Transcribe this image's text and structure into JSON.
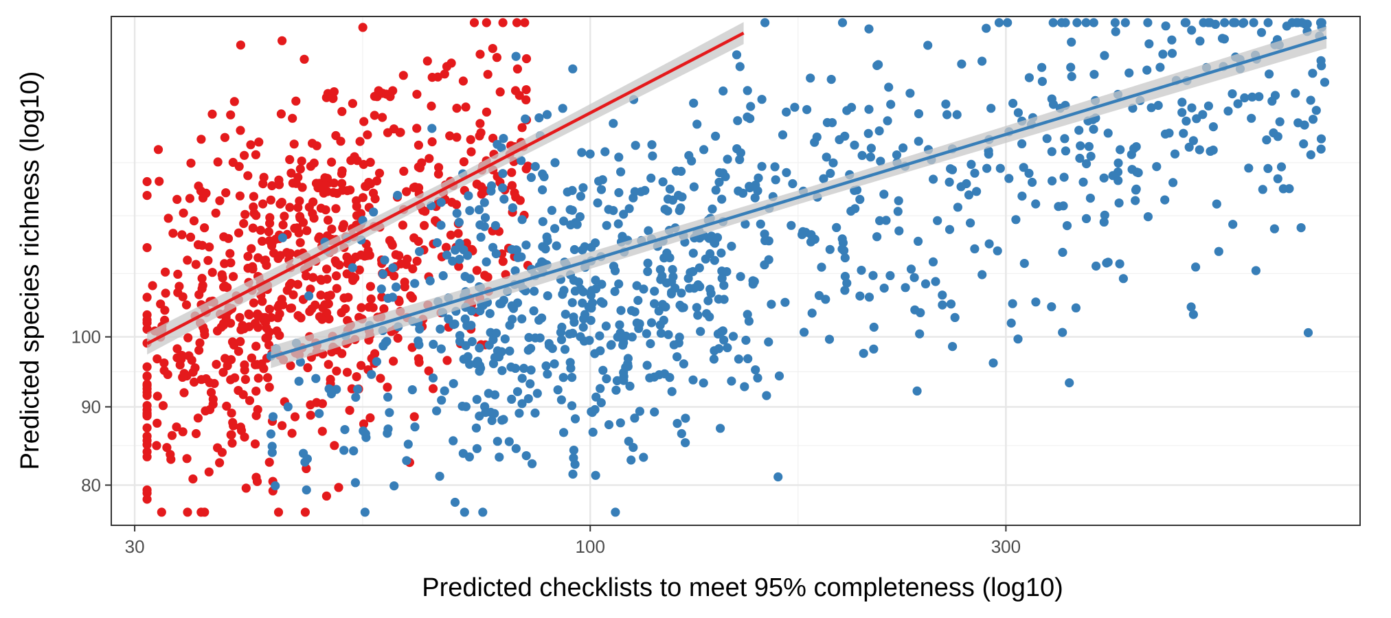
{
  "chart_data": {
    "type": "scatter",
    "title": "",
    "xlabel": "Predicted checklists to meet 95% completeness (log10)",
    "ylabel": "Predicted species richness (log10)",
    "x_scale": "log10",
    "y_scale": "log10",
    "xlim": [
      28.2,
      765
    ],
    "ylim": [
      75.3,
      162
    ],
    "x_ticks": [
      30,
      100,
      300
    ],
    "x_tick_labels": [
      "30",
      "100",
      "300"
    ],
    "x_minor_ticks": [
      54.8,
      173.2
    ],
    "y_ticks": [
      80,
      90,
      100
    ],
    "y_tick_labels": [
      "80",
      "90",
      "100"
    ],
    "y_minor_ticks": [
      84.9,
      94.9,
      110,
      120,
      130
    ],
    "grid": true,
    "legend": "none",
    "series": [
      {
        "color": "#E41A1C",
        "x_range": [
          31,
          150
        ],
        "y_center": "96.2 * (x/31)^0.30",
        "y_spread_log10": 0.058,
        "n_points": 760,
        "fit": {
          "x": [
            31,
            150
          ],
          "y": [
            99,
            158
          ]
        }
      },
      {
        "color": "#377EB8",
        "x_range": [
          43,
          700
        ],
        "y_center": "92.2 * (x/43)^0.173",
        "y_spread_log10": 0.055,
        "n_points": 980,
        "fit": {
          "x": [
            43,
            700
          ],
          "y": [
            97,
            157
          ]
        }
      }
    ],
    "fit_band_color": "#C8C8C8"
  }
}
